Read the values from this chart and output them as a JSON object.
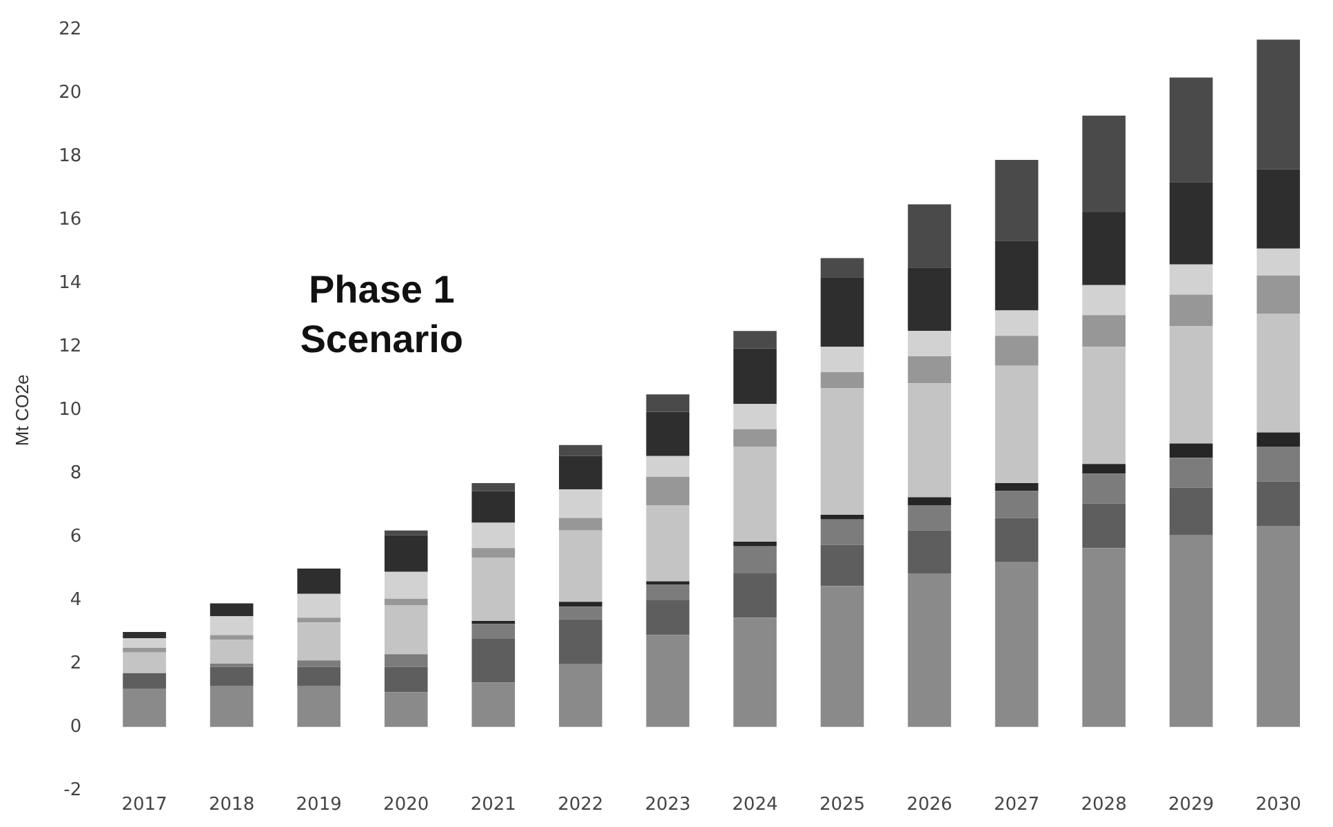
{
  "chart_data": {
    "type": "bar",
    "title": "Phase 1\nScenario",
    "ylabel": "Mt CO2e",
    "stacked": true,
    "legend": false,
    "grid": false,
    "categories": [
      "2017",
      "2018",
      "2019",
      "2020",
      "2021",
      "2022",
      "2023",
      "2024",
      "2025",
      "2026",
      "2027",
      "2028",
      "2029",
      "2030"
    ],
    "ylim": [
      -2,
      22
    ],
    "yticks": [
      -2,
      0,
      2,
      4,
      6,
      8,
      10,
      12,
      14,
      16,
      18,
      20,
      22
    ],
    "series": [
      {
        "color": "#8a8a8a",
        "values": [
          1.2,
          1.3,
          1.3,
          1.1,
          1.4,
          2.0,
          2.9,
          3.45,
          4.45,
          4.85,
          5.2,
          5.65,
          6.05,
          6.35
        ]
      },
      {
        "color": "#5e5e5e",
        "values": [
          0.5,
          0.6,
          0.6,
          0.8,
          1.4,
          1.4,
          1.1,
          1.4,
          1.3,
          1.35,
          1.4,
          1.4,
          1.5,
          1.4
        ]
      },
      {
        "color": "#7c7c7c",
        "values": [
          null,
          0.1,
          0.2,
          0.4,
          0.45,
          0.4,
          0.5,
          0.85,
          0.8,
          0.8,
          0.85,
          0.95,
          0.95,
          1.1
        ]
      },
      {
        "color": "#262626",
        "values": [
          null,
          null,
          null,
          null,
          0.1,
          0.15,
          0.1,
          0.15,
          0.15,
          0.25,
          0.25,
          0.3,
          0.45,
          0.45
        ]
      },
      {
        "color": "#c4c4c4",
        "values": [
          0.65,
          0.75,
          1.2,
          1.55,
          2.0,
          2.25,
          2.4,
          3.0,
          4.0,
          3.6,
          3.7,
          3.7,
          3.7,
          3.75
        ]
      },
      {
        "color": "#979797",
        "values": [
          0.15,
          0.15,
          0.15,
          0.2,
          0.3,
          0.4,
          0.9,
          0.55,
          0.5,
          0.85,
          0.95,
          1.0,
          1.0,
          1.2
        ]
      },
      {
        "color": "#d2d2d2",
        "values": [
          0.3,
          0.6,
          0.75,
          0.85,
          0.8,
          0.9,
          0.65,
          0.8,
          0.8,
          0.8,
          0.8,
          0.95,
          0.95,
          0.85
        ]
      },
      {
        "color": "#2e2e2e",
        "values": [
          0.2,
          0.4,
          0.8,
          1.15,
          1.0,
          1.05,
          1.4,
          1.75,
          2.2,
          2.0,
          2.2,
          2.3,
          2.6,
          2.5
        ]
      },
      {
        "color": "#4a4a4a",
        "values": [
          null,
          null,
          null,
          0.15,
          0.25,
          0.35,
          0.55,
          0.55,
          0.6,
          2.0,
          2.55,
          3.05,
          3.3,
          4.1
        ]
      }
    ]
  }
}
